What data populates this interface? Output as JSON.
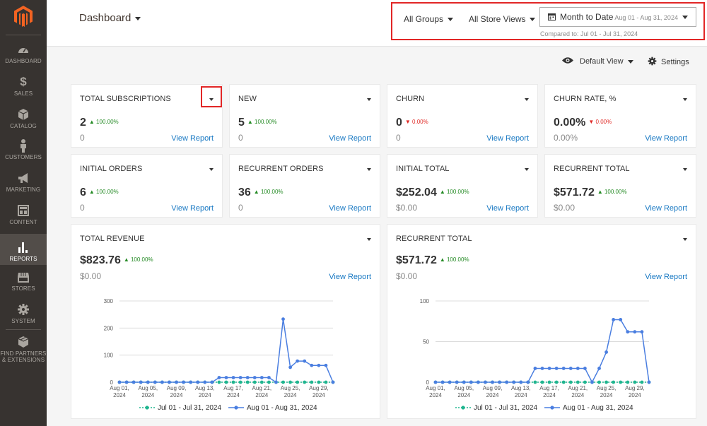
{
  "sidebar": {
    "items": [
      {
        "label": "DASHBOARD",
        "icon": "dashboard-icon"
      },
      {
        "label": "SALES",
        "icon": "dollar-icon"
      },
      {
        "label": "CATALOG",
        "icon": "cube-icon"
      },
      {
        "label": "CUSTOMERS",
        "icon": "person-icon"
      },
      {
        "label": "MARKETING",
        "icon": "megaphone-icon"
      },
      {
        "label": "CONTENT",
        "icon": "layout-icon"
      },
      {
        "label": "REPORTS",
        "icon": "bar-chart-icon"
      },
      {
        "label": "STORES",
        "icon": "store-icon"
      },
      {
        "label": "SYSTEM",
        "icon": "gear-icon"
      },
      {
        "label": "FIND PARTNERS",
        "label2": "& EXTENSIONS",
        "icon": "box-icon"
      }
    ],
    "active": "REPORTS"
  },
  "header": {
    "title": "Dashboard",
    "groups": "All Groups",
    "store_views": "All Store Views",
    "date_label": "Month to Date",
    "date_range": "Aug 01 - Aug 31, 2024",
    "compared": "Compared to: Jul 01 - Jul 31, 2024"
  },
  "toolbar": {
    "view": "Default View",
    "settings": "Settings"
  },
  "view_report": "View Report",
  "cards": [
    {
      "title": "TOTAL SUBSCRIPTIONS",
      "value": "2",
      "change": "100.00%",
      "dir": "up",
      "prev": "0"
    },
    {
      "title": "NEW",
      "value": "5",
      "change": "100.00%",
      "dir": "up",
      "prev": "0"
    },
    {
      "title": "CHURN",
      "value": "0",
      "change": "0.00%",
      "dir": "down",
      "prev": "0"
    },
    {
      "title": "CHURN RATE, %",
      "value": "0.00%",
      "change": "0.00%",
      "dir": "down",
      "prev": "0.00%"
    },
    {
      "title": "INITIAL ORDERS",
      "value": "6",
      "change": "100.00%",
      "dir": "up",
      "prev": "0"
    },
    {
      "title": "RECURRENT ORDERS",
      "value": "36",
      "change": "100.00%",
      "dir": "up",
      "prev": "0"
    },
    {
      "title": "INITIAL TOTAL",
      "value": "$252.04",
      "change": "100.00%",
      "dir": "up",
      "prev": "$0.00"
    },
    {
      "title": "RECURRENT TOTAL",
      "value": "$571.72",
      "change": "100.00%",
      "dir": "up",
      "prev": "$0.00"
    }
  ],
  "chart_cards": [
    {
      "title": "TOTAL REVENUE",
      "value": "$823.76",
      "change": "100.00%",
      "dir": "up",
      "prev": "$0.00"
    },
    {
      "title": "RECURRENT TOTAL",
      "value": "$571.72",
      "change": "100.00%",
      "dir": "up",
      "prev": "$0.00"
    }
  ],
  "chart_data": [
    {
      "type": "line",
      "title": "",
      "x": [
        "Aug 01, 2024",
        "Aug 02, 2024",
        "Aug 03, 2024",
        "Aug 04, 2024",
        "Aug 05, 2024",
        "Aug 06, 2024",
        "Aug 07, 2024",
        "Aug 08, 2024",
        "Aug 09, 2024",
        "Aug 10, 2024",
        "Aug 11, 2024",
        "Aug 12, 2024",
        "Aug 13, 2024",
        "Aug 14, 2024",
        "Aug 15, 2024",
        "Aug 16, 2024",
        "Aug 17, 2024",
        "Aug 18, 2024",
        "Aug 19, 2024",
        "Aug 20, 2024",
        "Aug 21, 2024",
        "Aug 22, 2024",
        "Aug 23, 2024",
        "Aug 24, 2024",
        "Aug 25, 2024",
        "Aug 26, 2024",
        "Aug 27, 2024",
        "Aug 28, 2024",
        "Aug 29, 2024",
        "Aug 30, 2024",
        "Aug 31, 2024"
      ],
      "xticks": [
        "Aug 01, 2024",
        "Aug 05, 2024",
        "Aug 09, 2024",
        "Aug 13, 2024",
        "Aug 17, 2024",
        "Aug 21, 2024",
        "Aug 25, 2024",
        "Aug 29, 2024"
      ],
      "ylim": [
        0,
        300
      ],
      "yticks": [
        0,
        100,
        200,
        300
      ],
      "grid": true,
      "legend": "bottom",
      "series": [
        {
          "name": "Jul 01 - Jul 31, 2024",
          "color": "#1fb58f",
          "values": [
            0,
            0,
            0,
            0,
            0,
            0,
            0,
            0,
            0,
            0,
            0,
            0,
            0,
            0,
            0,
            0,
            0,
            0,
            0,
            0,
            0,
            0,
            0,
            0,
            0,
            0,
            0,
            0,
            0,
            0,
            0
          ]
        },
        {
          "name": "Aug 01 - Aug 31, 2024",
          "color": "#4a7ee0",
          "values": [
            0,
            0,
            0,
            0,
            0,
            0,
            0,
            0,
            0,
            0,
            0,
            0,
            0,
            0,
            17,
            17,
            17,
            17,
            17,
            17,
            17,
            17,
            0,
            233,
            55,
            78,
            78,
            62,
            62,
            62,
            0
          ]
        }
      ]
    },
    {
      "type": "line",
      "title": "",
      "x": [
        "Aug 01, 2024",
        "Aug 02, 2024",
        "Aug 03, 2024",
        "Aug 04, 2024",
        "Aug 05, 2024",
        "Aug 06, 2024",
        "Aug 07, 2024",
        "Aug 08, 2024",
        "Aug 09, 2024",
        "Aug 10, 2024",
        "Aug 11, 2024",
        "Aug 12, 2024",
        "Aug 13, 2024",
        "Aug 14, 2024",
        "Aug 15, 2024",
        "Aug 16, 2024",
        "Aug 17, 2024",
        "Aug 18, 2024",
        "Aug 19, 2024",
        "Aug 20, 2024",
        "Aug 21, 2024",
        "Aug 22, 2024",
        "Aug 23, 2024",
        "Aug 24, 2024",
        "Aug 25, 2024",
        "Aug 26, 2024",
        "Aug 27, 2024",
        "Aug 28, 2024",
        "Aug 29, 2024",
        "Aug 30, 2024",
        "Aug 31, 2024"
      ],
      "xticks": [
        "Aug 01, 2024",
        "Aug 05, 2024",
        "Aug 09, 2024",
        "Aug 13, 2024",
        "Aug 17, 2024",
        "Aug 21, 2024",
        "Aug 25, 2024",
        "Aug 29, 2024"
      ],
      "ylim": [
        0,
        100
      ],
      "yticks": [
        0,
        50,
        100
      ],
      "grid": true,
      "legend": "bottom",
      "series": [
        {
          "name": "Jul 01 - Jul 31, 2024",
          "color": "#1fb58f",
          "values": [
            0,
            0,
            0,
            0,
            0,
            0,
            0,
            0,
            0,
            0,
            0,
            0,
            0,
            0,
            0,
            0,
            0,
            0,
            0,
            0,
            0,
            0,
            0,
            0,
            0,
            0,
            0,
            0,
            0,
            0,
            0
          ]
        },
        {
          "name": "Aug 01 - Aug 31, 2024",
          "color": "#4a7ee0",
          "values": [
            0,
            0,
            0,
            0,
            0,
            0,
            0,
            0,
            0,
            0,
            0,
            0,
            0,
            0,
            17,
            17,
            17,
            17,
            17,
            17,
            17,
            17,
            0,
            17,
            37,
            77,
            77,
            62,
            62,
            62,
            0
          ]
        }
      ]
    }
  ]
}
